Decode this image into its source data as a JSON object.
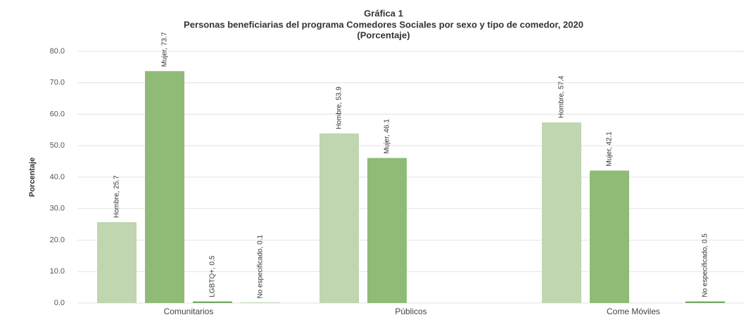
{
  "chart_data": {
    "type": "bar",
    "title": [
      "Gráfica 1",
      "Personas beneficiarias del programa Comedores Sociales por sexo y tipo de comedor, 2020",
      "(Porcentaje)"
    ],
    "y_label": "Porcentaje",
    "categories": [
      "Comunitarios",
      "Públicos",
      "Come Móviles"
    ],
    "series": [
      {
        "color": "#bfd6b0",
        "values": [
          25.7,
          53.9,
          57.4
        ],
        "value_labels": [
          "Hombre, 25.7",
          "Hombre, 53.9",
          "Hombre, 57.4"
        ]
      },
      {
        "color": "#8fbb76",
        "values": [
          73.7,
          46.1,
          42.1
        ],
        "value_labels": [
          "Mujer, 73.7",
          "Mujer, 46.1",
          "Mujer, 42.1"
        ]
      },
      {
        "color": "#72a85a",
        "values": [
          0.5,
          null,
          null
        ],
        "value_labels": [
          "LGBTQ+, 0.5",
          null,
          null
        ]
      },
      {
        "color": "#72a85a",
        "values": [
          0.1,
          null,
          0.5
        ],
        "value_labels": [
          "No especificado, 0.1",
          null,
          "No especificado, 0.5"
        ]
      }
    ],
    "ylim": [
      0,
      80
    ],
    "yticks": [
      {
        "value": 0,
        "label": "0.0"
      },
      {
        "value": 10,
        "label": "10.0"
      },
      {
        "value": 20,
        "label": "20.0"
      },
      {
        "value": 30,
        "label": "30.0"
      },
      {
        "value": 40,
        "label": "40.0"
      },
      {
        "value": 50,
        "label": "50.0"
      },
      {
        "value": 60,
        "label": "60.0"
      },
      {
        "value": 70,
        "label": "70.0"
      },
      {
        "value": 80,
        "label": "80.0"
      }
    ],
    "grid": true
  }
}
